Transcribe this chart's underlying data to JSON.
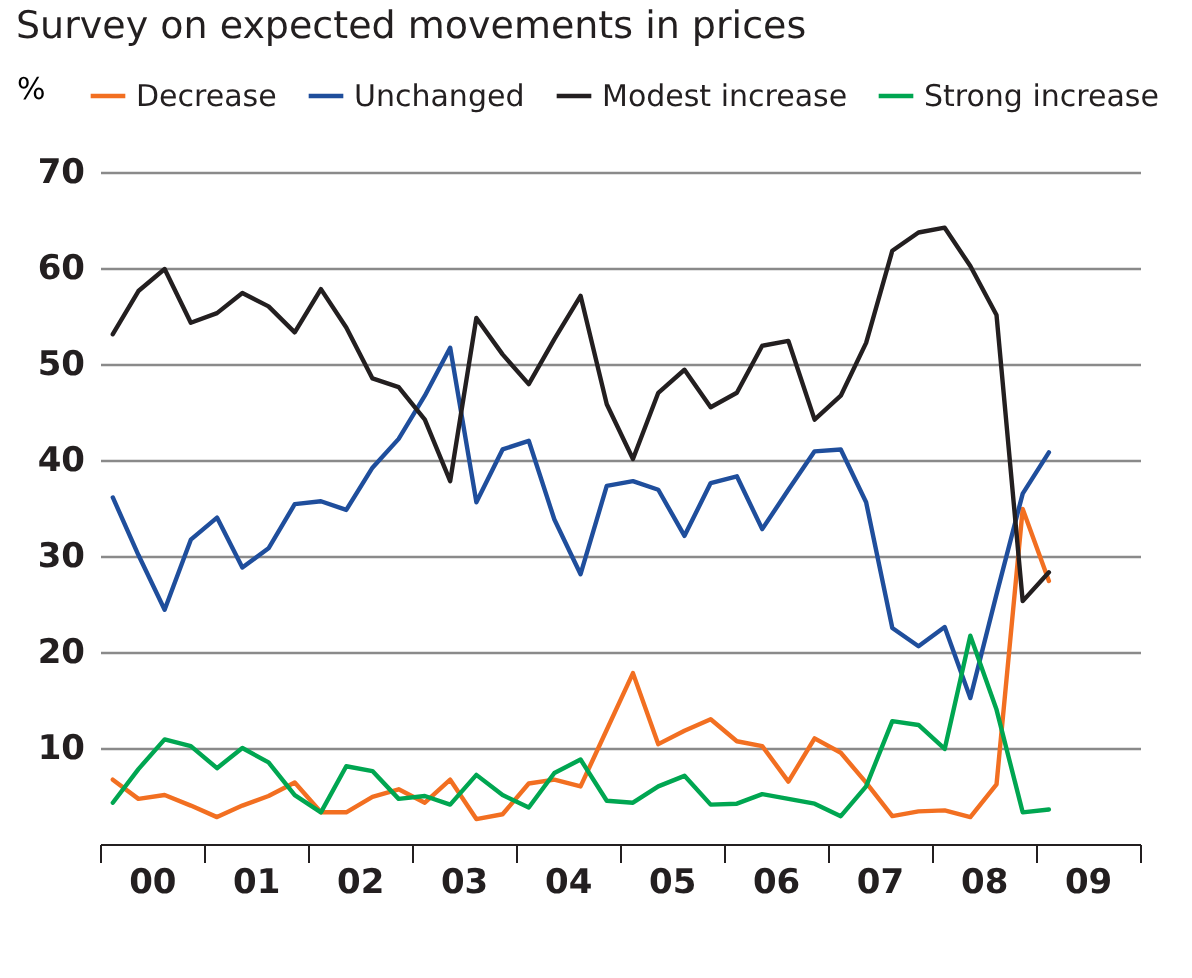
{
  "chart_data": {
    "type": "line",
    "title": "Survey on expected movements in prices",
    "ylabel": "%",
    "x": [
      "2000-02-15",
      "2000-05-15",
      "2000-08-15",
      "2000-11-15",
      "2001-02-15",
      "2001-05-15",
      "2001-08-15",
      "2001-11-15",
      "2002-02-15",
      "2002-05-15",
      "2002-08-15",
      "2002-11-15",
      "2003-02-15",
      "2003-05-15",
      "2003-08-15",
      "2003-11-15",
      "2004-02-15",
      "2004-05-15",
      "2004-08-15",
      "2004-11-15",
      "2005-02-15",
      "2005-05-15",
      "2005-08-15",
      "2005-11-15",
      "2006-02-15",
      "2006-05-15",
      "2006-08-15",
      "2006-11-15",
      "2007-02-15",
      "2007-05-15",
      "2007-08-15",
      "2007-11-15",
      "2008-02-15",
      "2008-05-15",
      "2008-08-15",
      "2008-11-15",
      "2009-02-15"
    ],
    "series": [
      {
        "name": "Decrease",
        "color": "#f26f21",
        "values": [
          6.7,
          4.7,
          5.1,
          4.0,
          2.8,
          4.0,
          5.0,
          6.4,
          3.3,
          3.3,
          4.9,
          5.7,
          4.3,
          6.7,
          2.6,
          3.1,
          6.3,
          6.7,
          6.0,
          11.9,
          17.8,
          10.4,
          11.8,
          13.0,
          10.7,
          10.2,
          6.5,
          11.0,
          9.5,
          6.4,
          2.9,
          3.4,
          3.5,
          2.8,
          6.2,
          34.9,
          27.4
        ]
      },
      {
        "name": "Unchanged",
        "color": "#1f4e9c",
        "values": [
          36.1,
          30.1,
          24.4,
          31.7,
          34.0,
          28.8,
          30.8,
          35.4,
          35.7,
          34.8,
          39.2,
          42.2,
          46.7,
          51.7,
          35.6,
          41.1,
          42.0,
          33.8,
          28.1,
          37.3,
          37.8,
          36.9,
          32.1,
          37.6,
          38.3,
          32.8,
          36.9,
          40.9,
          41.1,
          35.6,
          22.5,
          20.6,
          22.6,
          15.2,
          26.0,
          36.5,
          40.8
        ]
      },
      {
        "name": "Modest increase",
        "color": "#231f20",
        "values": [
          53.1,
          57.6,
          59.9,
          54.3,
          55.3,
          57.4,
          56.0,
          53.3,
          57.8,
          53.8,
          48.5,
          47.6,
          44.2,
          37.8,
          54.8,
          51.0,
          47.9,
          52.6,
          57.1,
          45.8,
          40.1,
          47.0,
          49.4,
          45.5,
          47.0,
          51.9,
          52.4,
          44.2,
          46.7,
          52.2,
          61.8,
          63.7,
          64.2,
          60.2,
          55.1,
          25.3,
          28.3
        ]
      },
      {
        "name": "Strong increase",
        "color": "#00a651",
        "values": [
          4.3,
          7.8,
          10.9,
          10.2,
          7.9,
          10.0,
          8.5,
          5.1,
          3.3,
          8.1,
          7.6,
          4.7,
          5.0,
          4.1,
          7.2,
          5.1,
          3.8,
          7.4,
          8.8,
          4.5,
          4.3,
          6.0,
          7.1,
          4.1,
          4.2,
          5.2,
          4.7,
          4.2,
          2.9,
          6.0,
          12.8,
          12.4,
          9.9,
          21.7,
          14.0,
          3.3,
          3.6
        ]
      }
    ],
    "xlim": [
      "2000-01-01",
      "2010-01-01"
    ],
    "xticks": [
      {
        "value": "2000-01-01",
        "label": null
      },
      {
        "value": "2000-07-01",
        "label": "00"
      },
      {
        "value": "2001-01-01",
        "label": null
      },
      {
        "value": "2001-07-01",
        "label": "01"
      },
      {
        "value": "2002-01-01",
        "label": null
      },
      {
        "value": "2002-07-01",
        "label": "02"
      },
      {
        "value": "2003-01-01",
        "label": null
      },
      {
        "value": "2003-07-01",
        "label": "03"
      },
      {
        "value": "2004-01-01",
        "label": null
      },
      {
        "value": "2004-07-01",
        "label": "04"
      },
      {
        "value": "2005-01-01",
        "label": null
      },
      {
        "value": "2005-07-01",
        "label": "05"
      },
      {
        "value": "2006-01-01",
        "label": null
      },
      {
        "value": "2006-07-01",
        "label": "06"
      },
      {
        "value": "2007-01-01",
        "label": null
      },
      {
        "value": "2007-07-01",
        "label": "07"
      },
      {
        "value": "2008-01-01",
        "label": null
      },
      {
        "value": "2008-07-01",
        "label": "08"
      },
      {
        "value": "2009-01-01",
        "label": null
      },
      {
        "value": "2009-07-01",
        "label": "09"
      },
      {
        "value": "2010-01-01",
        "label": null
      }
    ],
    "ylim": [
      0,
      70
    ],
    "yticks": [
      10,
      20,
      30,
      40,
      50,
      60,
      70
    ],
    "grid": "y",
    "legend": "top",
    "line_style": "solid"
  }
}
